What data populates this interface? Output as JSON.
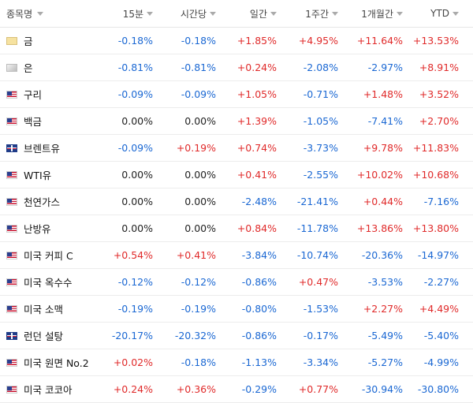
{
  "header": {
    "name": "종목명",
    "cols": [
      "15분",
      "시간당",
      "일간",
      "1주간",
      "1개월간",
      "YTD"
    ]
  },
  "colors": {
    "positive": "#e02a2a",
    "negative": "#1b68d3",
    "neutral": "#222222"
  },
  "rows": [
    {
      "name": "금",
      "icon": "gold-icon",
      "values": [
        "-0.18%",
        "-0.18%",
        "+1.85%",
        "+4.95%",
        "+11.64%",
        "+13.53%"
      ]
    },
    {
      "name": "은",
      "icon": "silver-icon",
      "values": [
        "-0.81%",
        "-0.81%",
        "+0.24%",
        "-2.08%",
        "-2.97%",
        "+8.91%"
      ]
    },
    {
      "name": "구리",
      "icon": "us-flag-icon",
      "values": [
        "-0.09%",
        "-0.09%",
        "+1.05%",
        "-0.71%",
        "+1.48%",
        "+3.52%"
      ]
    },
    {
      "name": "백금",
      "icon": "us-flag-icon",
      "values": [
        "0.00%",
        "0.00%",
        "+1.39%",
        "-1.05%",
        "-7.41%",
        "+2.70%"
      ]
    },
    {
      "name": "브렌트유",
      "icon": "uk-flag-icon",
      "values": [
        "-0.09%",
        "+0.19%",
        "+0.74%",
        "-3.73%",
        "+9.78%",
        "+11.83%"
      ]
    },
    {
      "name": "WTI유",
      "icon": "us-flag-icon",
      "values": [
        "0.00%",
        "0.00%",
        "+0.41%",
        "-2.55%",
        "+10.02%",
        "+10.68%"
      ]
    },
    {
      "name": "천연가스",
      "icon": "us-flag-icon",
      "values": [
        "0.00%",
        "0.00%",
        "-2.48%",
        "-21.41%",
        "+0.44%",
        "-7.16%"
      ]
    },
    {
      "name": "난방유",
      "icon": "us-flag-icon",
      "values": [
        "0.00%",
        "0.00%",
        "+0.84%",
        "-11.78%",
        "+13.86%",
        "+13.80%"
      ]
    },
    {
      "name": "미국 커피 C",
      "icon": "us-flag-icon",
      "values": [
        "+0.54%",
        "+0.41%",
        "-3.84%",
        "-10.74%",
        "-20.36%",
        "-14.97%"
      ]
    },
    {
      "name": "미국 옥수수",
      "icon": "us-flag-icon",
      "values": [
        "-0.12%",
        "-0.12%",
        "-0.86%",
        "+0.47%",
        "-3.53%",
        "-2.27%"
      ]
    },
    {
      "name": "미국 소맥",
      "icon": "us-flag-icon",
      "values": [
        "-0.19%",
        "-0.19%",
        "-0.80%",
        "-1.53%",
        "+2.27%",
        "+4.49%"
      ]
    },
    {
      "name": "런던 설탕",
      "icon": "uk-flag-icon",
      "values": [
        "-20.17%",
        "-20.32%",
        "-0.86%",
        "-0.17%",
        "-5.49%",
        "-5.40%"
      ]
    },
    {
      "name": "미국 원면 No.2",
      "icon": "us-flag-icon",
      "values": [
        "+0.02%",
        "-0.18%",
        "-1.13%",
        "-3.34%",
        "-5.27%",
        "-4.99%"
      ]
    },
    {
      "name": "미국 코코아",
      "icon": "us-flag-icon",
      "values": [
        "+0.24%",
        "+0.36%",
        "-0.29%",
        "+0.77%",
        "-30.94%",
        "-30.80%"
      ]
    }
  ]
}
